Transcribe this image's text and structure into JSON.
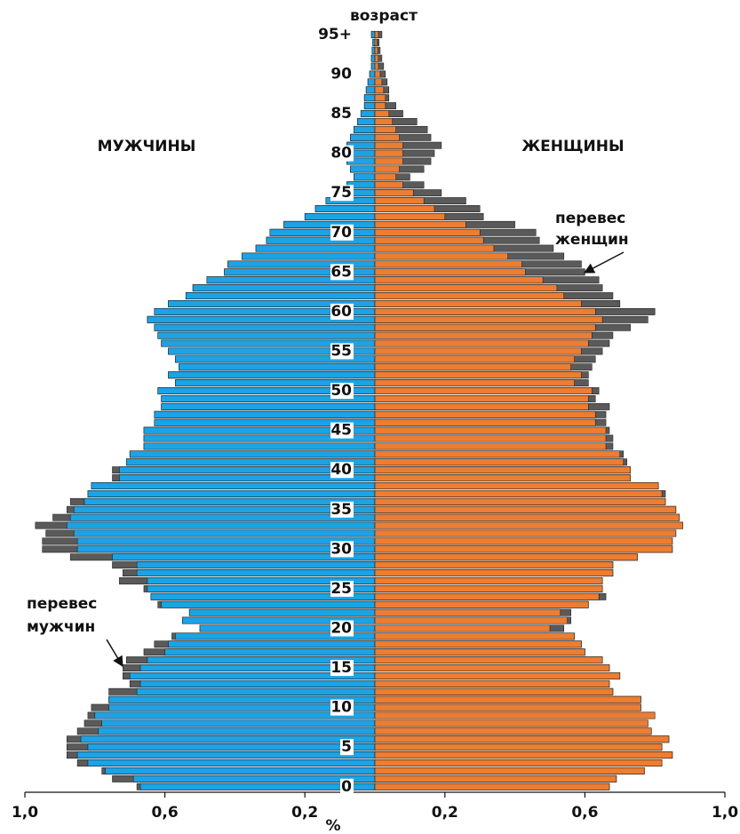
{
  "chart_data": {
    "type": "pyramid",
    "title": "возраст",
    "x_label": "%",
    "series": [
      {
        "name": "МУЖЧИНЫ",
        "color": "#1ba3e6",
        "values": [
          0.68,
          0.75,
          0.78,
          0.85,
          0.88,
          0.88,
          0.88,
          0.85,
          0.83,
          0.82,
          0.81,
          0.76,
          0.76,
          0.7,
          0.72,
          0.72,
          0.71,
          0.66,
          0.63,
          0.58,
          0.5,
          0.55,
          0.53,
          0.62,
          0.64,
          0.66,
          0.73,
          0.72,
          0.75,
          0.87,
          0.95,
          0.95,
          0.94,
          0.97,
          0.92,
          0.88,
          0.87,
          0.82,
          0.81,
          0.75,
          0.75,
          0.71,
          0.7,
          0.66,
          0.66,
          0.66,
          0.63,
          0.63,
          0.61,
          0.61,
          0.62,
          0.57,
          0.59,
          0.56,
          0.57,
          0.59,
          0.61,
          0.62,
          0.63,
          0.65,
          0.63,
          0.59,
          0.54,
          0.52,
          0.48,
          0.43,
          0.42,
          0.38,
          0.34,
          0.31,
          0.3,
          0.26,
          0.2,
          0.17,
          0.14,
          0.11,
          0.08,
          0.06,
          0.07,
          0.08,
          0.08,
          0.08,
          0.07,
          0.06,
          0.05,
          0.04,
          0.03,
          0.03,
          0.025,
          0.02,
          0.015,
          0.01,
          0.01,
          0.008,
          0.006,
          0.01
        ]
      },
      {
        "name": "ЖЕНЩИНЫ",
        "color": "#ed7d31",
        "values": [
          0.67,
          0.69,
          0.77,
          0.82,
          0.85,
          0.82,
          0.84,
          0.79,
          0.78,
          0.8,
          0.76,
          0.76,
          0.68,
          0.67,
          0.7,
          0.67,
          0.65,
          0.6,
          0.59,
          0.57,
          0.54,
          0.56,
          0.56,
          0.61,
          0.66,
          0.65,
          0.65,
          0.68,
          0.68,
          0.75,
          0.85,
          0.85,
          0.86,
          0.88,
          0.87,
          0.86,
          0.83,
          0.83,
          0.81,
          0.73,
          0.73,
          0.72,
          0.71,
          0.68,
          0.68,
          0.67,
          0.66,
          0.66,
          0.67,
          0.63,
          0.64,
          0.61,
          0.61,
          0.62,
          0.63,
          0.65,
          0.67,
          0.68,
          0.73,
          0.78,
          0.8,
          0.7,
          0.68,
          0.65,
          0.64,
          0.6,
          0.59,
          0.54,
          0.51,
          0.47,
          0.46,
          0.4,
          0.31,
          0.3,
          0.26,
          0.19,
          0.14,
          0.1,
          0.14,
          0.16,
          0.17,
          0.19,
          0.16,
          0.15,
          0.12,
          0.08,
          0.06,
          0.04,
          0.04,
          0.035,
          0.03,
          0.025,
          0.02,
          0.015,
          0.012,
          0.02
        ]
      }
    ],
    "surplus_color": "#5a5a5a",
    "ages": [
      0,
      1,
      2,
      3,
      4,
      5,
      6,
      7,
      8,
      9,
      10,
      11,
      12,
      13,
      14,
      15,
      16,
      17,
      18,
      19,
      20,
      21,
      22,
      23,
      24,
      25,
      26,
      27,
      28,
      29,
      30,
      31,
      32,
      33,
      34,
      35,
      36,
      37,
      38,
      39,
      40,
      41,
      42,
      43,
      44,
      45,
      46,
      47,
      48,
      49,
      50,
      51,
      52,
      53,
      54,
      55,
      56,
      57,
      58,
      59,
      60,
      61,
      62,
      63,
      64,
      65,
      66,
      67,
      68,
      69,
      70,
      71,
      72,
      73,
      74,
      75,
      76,
      77,
      78,
      79,
      80,
      81,
      82,
      83,
      84,
      85,
      86,
      87,
      88,
      89,
      90,
      91,
      92,
      93,
      94,
      95
    ],
    "xlim": [
      -1,
      1
    ],
    "xticks": [
      {
        "value": -1,
        "label": "1,0"
      },
      {
        "value": -0.6,
        "label": "0,6"
      },
      {
        "value": -0.2,
        "label": "0,2"
      },
      {
        "value": 0.2,
        "label": "0,2"
      },
      {
        "value": 0.6,
        "label": "0,6"
      },
      {
        "value": 1,
        "label": "1,0"
      }
    ],
    "ylim": [
      -0.7,
      96
    ],
    "yticks": [
      0,
      5,
      10,
      15,
      20,
      25,
      30,
      35,
      40,
      45,
      50,
      55,
      60,
      65,
      70,
      75,
      80,
      85,
      90,
      {
        "value": 95,
        "label": "95+"
      }
    ],
    "annotations": [
      [
        "перевес",
        "женщин"
      ],
      [
        "перевес",
        "мужчин"
      ]
    ]
  }
}
